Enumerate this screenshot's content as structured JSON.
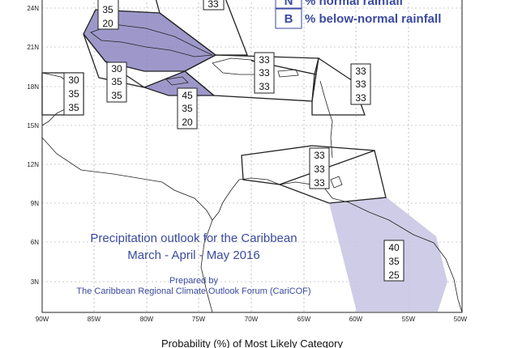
{
  "title_line1": "Precipitation outlook for the Caribbean",
  "title_line2": "March - April - May 2016",
  "prepared_by": "Prepared by",
  "forum": "The Caribbean Regional Climate Outlook Forum (CariCOF)",
  "footer": "Probability (%) of Most Likely Category",
  "legend": [
    {
      "key": "N",
      "label": "% normal rainfall"
    },
    {
      "key": "B",
      "label": "% below-normal rainfall"
    }
  ],
  "lon_ticks": [
    "90W",
    "85W",
    "80W",
    "75W",
    "70W",
    "65W",
    "60W",
    "55W",
    "50W"
  ],
  "lat_ticks": [
    "24N",
    "21N",
    "18N",
    "15N",
    "12N",
    "9N",
    "6N",
    "3N"
  ],
  "probability_boxes": [
    {
      "region": "Cuba-north",
      "values": [
        "35",
        "20"
      ]
    },
    {
      "region": "Bahamas",
      "values": [
        "33"
      ]
    },
    {
      "region": "Belize-Yucatan",
      "values": [
        "30",
        "35",
        "35"
      ]
    },
    {
      "region": "Cayman-Jamaica-west",
      "values": [
        "30",
        "35",
        "35"
      ]
    },
    {
      "region": "Jamaica",
      "values": [
        "45",
        "35",
        "20"
      ]
    },
    {
      "region": "Hispaniola-PuertoRico",
      "values": [
        "33",
        "33",
        "33"
      ]
    },
    {
      "region": "Leeward-Islands",
      "values": [
        "33",
        "33",
        "33"
      ]
    },
    {
      "region": "ABC-Trinidad-Windwards",
      "values": [
        "33",
        "33",
        "33"
      ]
    },
    {
      "region": "Guianas",
      "values": [
        "40",
        "35",
        "25"
      ]
    }
  ],
  "colors": {
    "below_normal_fill": "#8c86c0",
    "guianas_fill": "#c9c6e3",
    "accent_text": "#3a4aa0"
  }
}
